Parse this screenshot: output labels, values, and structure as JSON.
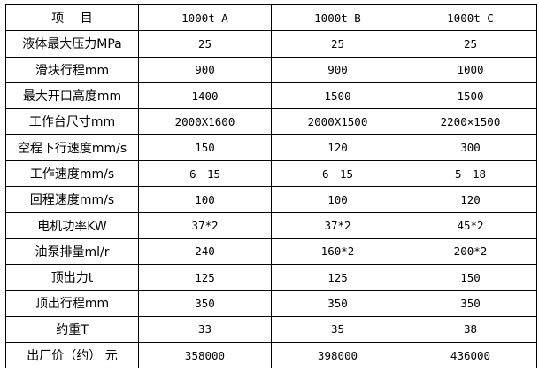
{
  "table": {
    "header": [
      "项　 目",
      "1000t-A",
      "1000t-B",
      "1000t-C"
    ],
    "rows": [
      [
        "液体最大压力MPa",
        "25",
        "25",
        "25"
      ],
      [
        "滑块行程mm",
        "900",
        "900",
        "1000"
      ],
      [
        "最大开口高度mm",
        "1400",
        "1500",
        "1500"
      ],
      [
        "工作台尺寸mm",
        "2000X1600",
        "2000X1500",
        "2200×1500"
      ],
      [
        "空程下行速度mm/s",
        "150",
        "120",
        "300"
      ],
      [
        "工作速度mm/s",
        "6－15",
        "6－15",
        "5－18"
      ],
      [
        "回程速度mm/s",
        "100",
        "100",
        "120"
      ],
      [
        "电机功率KW",
        "37*2",
        "37*2",
        "45*2"
      ],
      [
        "油泵排量ml/r",
        "240",
        "160*2",
        "200*2"
      ],
      [
        "顶出力t",
        "125",
        "125",
        "150"
      ],
      [
        "顶出行程mm",
        "350",
        "350",
        "350"
      ],
      [
        "约重T",
        "33",
        "35",
        "38"
      ],
      [
        "出厂价（约） 元",
        "358000",
        "398000",
        "436000"
      ]
    ]
  }
}
